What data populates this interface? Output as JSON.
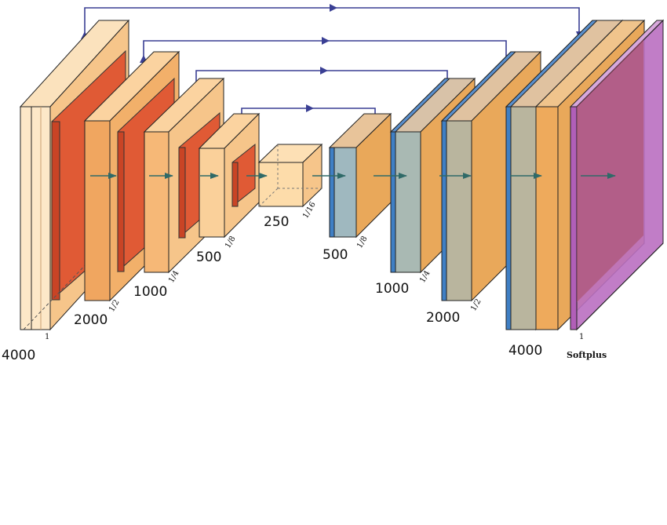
{
  "colors": {
    "conv": "#f6c58a",
    "conv_dark": "#eeaa5c",
    "pool": "#d9452a",
    "unpool": "#3f7fc4",
    "output": "#b15fb8",
    "skip_arrow": "#3a3f94",
    "flow_arrow": "#2f6a68"
  },
  "encoder": {
    "blocks": [
      {
        "size": "4000",
        "scale": "1"
      },
      {
        "size": "2000",
        "scale": "1/2"
      },
      {
        "size": "1000",
        "scale": "1/4"
      },
      {
        "size": "500",
        "scale": "1/8"
      }
    ],
    "bottleneck": {
      "size": "250",
      "scale": "1/16"
    }
  },
  "decoder": {
    "blocks": [
      {
        "size": "500",
        "scale": "1/8"
      },
      {
        "size": "1000",
        "scale": "1/4"
      },
      {
        "size": "2000",
        "scale": "1/2"
      },
      {
        "size": "4000",
        "scale": ""
      }
    ]
  },
  "output": {
    "activation": "Softplus",
    "scale": "1"
  },
  "icons": {
    "skip_connection": "skip-connection-arrow-icon",
    "flow": "flow-arrow-icon"
  }
}
